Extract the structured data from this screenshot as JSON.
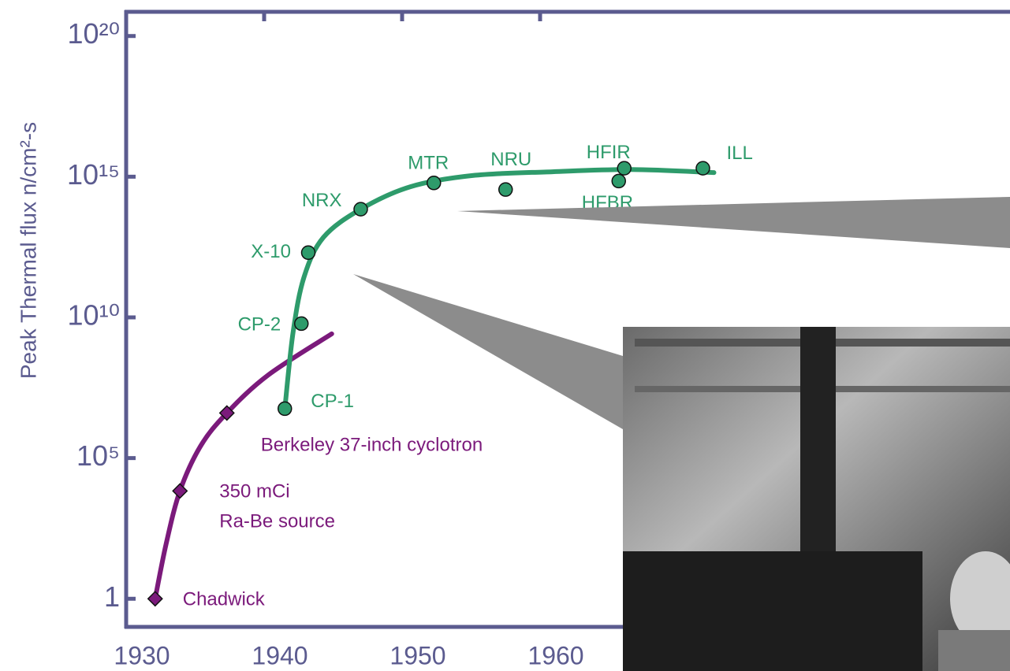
{
  "chart_data": {
    "type": "scatter",
    "y_label": "Peak Thermal flux n/cm²-s",
    "log_y": true,
    "xlim": [
      1930,
      1994
    ],
    "xticks": [
      1930,
      1940,
      1950,
      1960
    ],
    "ylim": [
      0.1,
      1e+21
    ],
    "yticks": [
      1,
      {
        "value": 100000,
        "label": "10⁵"
      },
      {
        "value": 10000000000.0,
        "label": "10¹⁰"
      },
      {
        "value": 1000000000000000.0,
        "label": "10¹⁵"
      },
      {
        "value": 1e+20,
        "label": "10²⁰"
      }
    ],
    "axis_color": "#5b5b8f",
    "series": [
      {
        "color": "#7b1a7b",
        "marker": "diamond",
        "x": [
          1932.1,
          1933.9,
          1937.3
        ],
        "values": [
          1,
          6800,
          4000000
        ],
        "labels": [
          "Chadwick",
          [
            "350 mCi",
            "Ra-Be source"
          ],
          "Berkeley 37-inch cyclotron"
        ],
        "line_x": [
          1932.1,
          1932.9,
          1933.9,
          1935.4,
          1937.3,
          1940.3,
          1944.9
        ],
        "line_values": [
          1,
          90,
          6800,
          270000,
          4000000,
          90000000,
          2600000000
        ]
      },
      {
        "color": "#2e9b6b",
        "marker": "circle",
        "x": [
          1941.5,
          1942.7,
          1943.2,
          1947.0,
          1952.3,
          1957.5,
          1966.1,
          1965.7,
          1971.8
        ],
        "values": [
          5700000,
          6000000000,
          2000000000000,
          70000000000000,
          600000000000000,
          350000000000000,
          2000000000000000,
          700000000000000,
          2000000000000000
        ],
        "labels": [
          "CP-1",
          "CP-2",
          "X-10",
          "NRX",
          "MTR",
          "NRU",
          "HFIR",
          "HFBR",
          "ILL"
        ],
        "line_x": [
          1941.5,
          1942.1,
          1942.9,
          1944.3,
          1947.0,
          1950.6,
          1955.1,
          1960.9,
          1966.6,
          1972.6
        ],
        "line_values": [
          5700000,
          3000000000,
          280000000000,
          7000000000000,
          70000000000000,
          440000000000000,
          1100000000000000,
          1500000000000000,
          1800000000000000,
          1400000000000000
        ]
      }
    ]
  }
}
